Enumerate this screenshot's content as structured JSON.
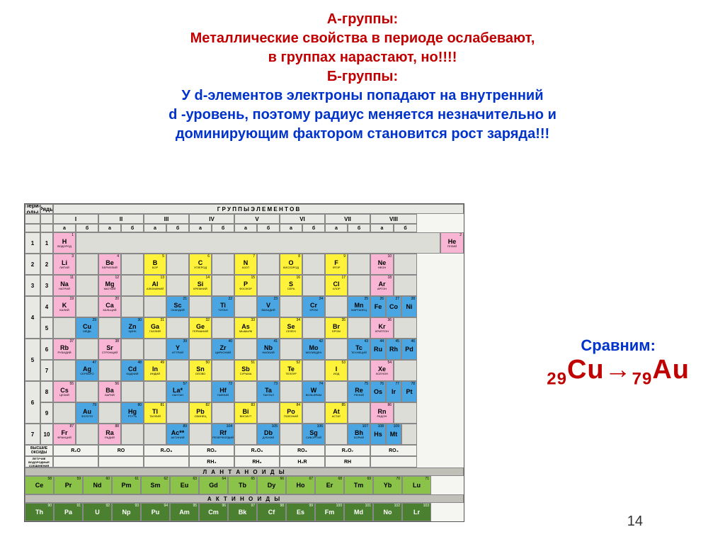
{
  "header": {
    "line1": "А-группы:",
    "line2": "Металлические свойства в периоде ослабевают,",
    "line3": "в группах нарастают, но!!!!",
    "line4": "Б-группы:",
    "line5": "У d-элементов электроны попадают на внутренний",
    "line6": "d -уровень,  поэтому радиус меняется незначительно и",
    "line7": "доминирующим фактором становится рост заряда!!!"
  },
  "compare": {
    "label": "Сравним:",
    "sub1": "29",
    "el1": "Cu",
    "arrow": "→",
    "sub2": "79",
    "el2": "Au"
  },
  "page_number": "14",
  "pt": {
    "top_label": "Г Р У П П Ы   Э Л Е М Е Н Т О В",
    "period_label": "Пери-оды",
    "row_label": "Ряды",
    "groups": [
      "I",
      "II",
      "III",
      "IV",
      "V",
      "VI",
      "VII",
      "VIII"
    ],
    "ab": [
      "а",
      "б"
    ],
    "oxides_label": "ВЫСШИЕ ОКСИДЫ",
    "oxides": [
      "R₂O",
      "RO",
      "R₂O₃",
      "RO₂",
      "R₂O₅",
      "RO₃",
      "R₂O₇",
      "RO₄"
    ],
    "hydrides_label": "ЛЕТУЧИЕ ВОДОРОДНЫЕ СОЕДИНЕНИЯ",
    "hydrides": [
      "",
      "",
      "",
      "RH₄",
      "RH₃",
      "H₂R",
      "RH",
      ""
    ],
    "lant_label": "Л А Н Т А Н О И Д Ы",
    "act_label": "А К Т И Н О И Д Ы",
    "periods": [
      {
        "p": "1",
        "r": "1"
      },
      {
        "p": "2",
        "r": "2"
      },
      {
        "p": "3",
        "r": "3"
      },
      {
        "p": "4",
        "r": [
          "4",
          "5"
        ]
      },
      {
        "p": "5",
        "r": [
          "6",
          "7"
        ]
      },
      {
        "p": "6",
        "r": [
          "8",
          "9"
        ]
      },
      {
        "p": "7",
        "r": "10"
      }
    ],
    "rows": [
      [
        {
          "s": "H",
          "n": "ВОДОРОД",
          "z": "1",
          "c": "pink",
          "pos": "a1"
        },
        {
          "pos": "empty",
          "span": 6
        },
        {
          "s": "He",
          "n": "ГЕЛИЙ",
          "z": "2",
          "c": "pink",
          "pos": "a8"
        }
      ],
      [
        {
          "s": "Li",
          "n": "ЛИТИЙ",
          "z": "3",
          "c": "pink"
        },
        {
          "s": "Be",
          "n": "БЕРИЛЛИЙ",
          "z": "4",
          "c": "pink"
        },
        {
          "s": "B",
          "n": "БОР",
          "z": "5",
          "c": "yellow"
        },
        {
          "s": "C",
          "n": "УГЛЕРОД",
          "z": "6",
          "c": "yellow"
        },
        {
          "s": "N",
          "n": "АЗОТ",
          "z": "7",
          "c": "yellow"
        },
        {
          "s": "O",
          "n": "КИСЛОРОД",
          "z": "8",
          "c": "yellow"
        },
        {
          "s": "F",
          "n": "ФТОР",
          "z": "9",
          "c": "yellow"
        },
        {
          "s": "Ne",
          "n": "НЕОН",
          "z": "10",
          "c": "pink"
        }
      ],
      [
        {
          "s": "Na",
          "n": "НАТРИЙ",
          "z": "11",
          "c": "pink"
        },
        {
          "s": "Mg",
          "n": "МАГНИЙ",
          "z": "12",
          "c": "pink"
        },
        {
          "s": "Al",
          "n": "АЛЮМИНИЙ",
          "z": "13",
          "c": "yellow"
        },
        {
          "s": "Si",
          "n": "КРЕМНИЙ",
          "z": "14",
          "c": "yellow"
        },
        {
          "s": "P",
          "n": "ФОСФОР",
          "z": "15",
          "c": "yellow"
        },
        {
          "s": "S",
          "n": "СЕРА",
          "z": "16",
          "c": "yellow"
        },
        {
          "s": "Cl",
          "n": "ХЛОР",
          "z": "17",
          "c": "yellow"
        },
        {
          "s": "Ar",
          "n": "АРГОН",
          "z": "18",
          "c": "pink"
        }
      ],
      [
        {
          "s": "K",
          "n": "КАЛИЙ",
          "z": "19",
          "c": "pink"
        },
        {
          "s": "Ca",
          "n": "КАЛЬЦИЙ",
          "z": "20",
          "c": "pink"
        },
        {
          "s": "Sc",
          "n": "СКАНДИЙ",
          "z": "21",
          "c": "blueb"
        },
        {
          "s": "Ti",
          "n": "ТИТАН",
          "z": "22",
          "c": "blueb"
        },
        {
          "s": "V",
          "n": "ВАНАДИЙ",
          "z": "23",
          "c": "blueb"
        },
        {
          "s": "Cr",
          "n": "ХРОМ",
          "z": "24",
          "c": "blueb"
        },
        {
          "s": "Mn",
          "n": "МАРГАНЕЦ",
          "z": "25",
          "c": "blueb"
        },
        {
          "s": "Fe",
          "z": "26",
          "c": "blueb",
          "sub": [
            {
              "s": "Co",
              "z": "27"
            },
            {
              "s": "Ni",
              "z": "28"
            }
          ]
        }
      ],
      [
        {
          "s": "Cu",
          "n": "МЕДЬ",
          "z": "29",
          "c": "blueb"
        },
        {
          "s": "Zn",
          "n": "ЦИНК",
          "z": "30",
          "c": "blueb"
        },
        {
          "s": "Ga",
          "n": "ГАЛЛИЙ",
          "z": "31",
          "c": "yellow"
        },
        {
          "s": "Ge",
          "n": "ГЕРМАНИЙ",
          "z": "32",
          "c": "yellow"
        },
        {
          "s": "As",
          "n": "МЫШЬЯК",
          "z": "33",
          "c": "yellow"
        },
        {
          "s": "Se",
          "n": "СЕЛЕН",
          "z": "34",
          "c": "yellow"
        },
        {
          "s": "Br",
          "n": "БРОМ",
          "z": "35",
          "c": "yellow"
        },
        {
          "s": "Kr",
          "n": "КРИПТОН",
          "z": "36",
          "c": "pink"
        }
      ],
      [
        {
          "s": "Rb",
          "n": "РУБИДИЙ",
          "z": "37",
          "c": "pink"
        },
        {
          "s": "Sr",
          "n": "СТРОНЦИЙ",
          "z": "38",
          "c": "pink"
        },
        {
          "s": "Y",
          "n": "ИТТРИЙ",
          "z": "39",
          "c": "blueb"
        },
        {
          "s": "Zr",
          "n": "ЦИРКОНИЙ",
          "z": "40",
          "c": "blueb"
        },
        {
          "s": "Nb",
          "n": "НИОБИЙ",
          "z": "41",
          "c": "blueb"
        },
        {
          "s": "Mo",
          "n": "МОЛИБДЕН",
          "z": "42",
          "c": "blueb"
        },
        {
          "s": "Tc",
          "n": "ТЕХНЕЦИЙ",
          "z": "43",
          "c": "blueb"
        },
        {
          "s": "Ru",
          "z": "44",
          "c": "blueb",
          "sub": [
            {
              "s": "Rh",
              "z": "45"
            },
            {
              "s": "Pd",
              "z": "46"
            }
          ]
        }
      ],
      [
        {
          "s": "Ag",
          "n": "СЕРЕБРО",
          "z": "47",
          "c": "blueb"
        },
        {
          "s": "Cd",
          "n": "КАДМИЙ",
          "z": "48",
          "c": "blueb"
        },
        {
          "s": "In",
          "n": "ИНДИЙ",
          "z": "49",
          "c": "yellow"
        },
        {
          "s": "Sn",
          "n": "ОЛОВО",
          "z": "50",
          "c": "yellow"
        },
        {
          "s": "Sb",
          "n": "СУРЬМА",
          "z": "51",
          "c": "yellow"
        },
        {
          "s": "Te",
          "n": "ТЕЛЛУР",
          "z": "52",
          "c": "yellow"
        },
        {
          "s": "I",
          "n": "ИОД",
          "z": "53",
          "c": "yellow"
        },
        {
          "s": "Xe",
          "n": "КСЕНОН",
          "z": "54",
          "c": "pink"
        }
      ],
      [
        {
          "s": "Cs",
          "n": "ЦЕЗИЙ",
          "z": "55",
          "c": "pink"
        },
        {
          "s": "Ba",
          "n": "БАРИЙ",
          "z": "56",
          "c": "pink"
        },
        {
          "s": "La*",
          "n": "ЛАНТАН",
          "z": "57",
          "c": "blueb"
        },
        {
          "s": "Hf",
          "n": "ГАФНИЙ",
          "z": "72",
          "c": "blueb"
        },
        {
          "s": "Ta",
          "n": "ТАНТАЛ",
          "z": "73",
          "c": "blueb"
        },
        {
          "s": "W",
          "n": "ВОЛЬФРАМ",
          "z": "74",
          "c": "blueb"
        },
        {
          "s": "Re",
          "n": "РЕНИЙ",
          "z": "75",
          "c": "blueb"
        },
        {
          "s": "Os",
          "z": "76",
          "c": "blueb",
          "sub": [
            {
              "s": "Ir",
              "z": "77"
            },
            {
              "s": "Pt",
              "z": "78"
            }
          ]
        }
      ],
      [
        {
          "s": "Au",
          "n": "ЗОЛОТО",
          "z": "79",
          "c": "blueb"
        },
        {
          "s": "Hg",
          "n": "РТУТЬ",
          "z": "80",
          "c": "blueb"
        },
        {
          "s": "Tl",
          "n": "ТАЛЛИЙ",
          "z": "81",
          "c": "yellow"
        },
        {
          "s": "Pb",
          "n": "СВИНЕЦ",
          "z": "82",
          "c": "yellow"
        },
        {
          "s": "Bi",
          "n": "ВИСМУТ",
          "z": "83",
          "c": "yellow"
        },
        {
          "s": "Po",
          "n": "ПОЛОНИЙ",
          "z": "84",
          "c": "yellow"
        },
        {
          "s": "At",
          "n": "АСТАТ",
          "z": "85",
          "c": "yellow"
        },
        {
          "s": "Rn",
          "n": "РАДОН",
          "z": "86",
          "c": "pink"
        }
      ],
      [
        {
          "s": "Fr",
          "n": "ФРАНЦИЙ",
          "z": "87",
          "c": "pink"
        },
        {
          "s": "Ra",
          "n": "РАДИЙ",
          "z": "88",
          "c": "pink"
        },
        {
          "s": "Ac**",
          "n": "АКТИНИЙ",
          "z": "89",
          "c": "blueb"
        },
        {
          "s": "Rf",
          "n": "РЕЗЕРФОРДИЙ",
          "z": "104",
          "c": "blueb"
        },
        {
          "s": "Db",
          "n": "ДУБНИЙ",
          "z": "105",
          "c": "blueb"
        },
        {
          "s": "Sg",
          "n": "СИБОРГИЙ",
          "z": "106",
          "c": "blueb"
        },
        {
          "s": "Bh",
          "n": "БОРИЙ",
          "z": "107",
          "c": "blueb"
        },
        {
          "s": "Hs",
          "z": "108",
          "c": "blueb",
          "sub": [
            {
              "s": "Mt",
              "z": "109"
            },
            {
              "s": "",
              "z": ""
            }
          ]
        }
      ]
    ],
    "lanthanides": [
      {
        "s": "Ce",
        "z": "58"
      },
      {
        "s": "Pr",
        "z": "59"
      },
      {
        "s": "Nd",
        "z": "60"
      },
      {
        "s": "Pm",
        "z": "61"
      },
      {
        "s": "Sm",
        "z": "62"
      },
      {
        "s": "Eu",
        "z": "63"
      },
      {
        "s": "Gd",
        "z": "64"
      },
      {
        "s": "Tb",
        "z": "65"
      },
      {
        "s": "Dy",
        "z": "66"
      },
      {
        "s": "Ho",
        "z": "67"
      },
      {
        "s": "Er",
        "z": "68"
      },
      {
        "s": "Tm",
        "z": "69"
      },
      {
        "s": "Yb",
        "z": "70"
      },
      {
        "s": "Lu",
        "z": "71"
      }
    ],
    "actinides": [
      {
        "s": "Th",
        "z": "90"
      },
      {
        "s": "Pa",
        "z": "91"
      },
      {
        "s": "U",
        "z": "92"
      },
      {
        "s": "Np",
        "z": "93"
      },
      {
        "s": "Pu",
        "z": "94"
      },
      {
        "s": "Am",
        "z": "95"
      },
      {
        "s": "Cm",
        "z": "96"
      },
      {
        "s": "Bk",
        "z": "97"
      },
      {
        "s": "Cf",
        "z": "98"
      },
      {
        "s": "Es",
        "z": "99"
      },
      {
        "s": "Fm",
        "z": "100"
      },
      {
        "s": "Md",
        "z": "101"
      },
      {
        "s": "No",
        "z": "102"
      },
      {
        "s": "Lr",
        "z": "103"
      }
    ]
  },
  "colors": {
    "red": "#c00000",
    "blue": "#0033cc",
    "pink": "#f8b6d4",
    "yellow": "#fff23b",
    "blueb": "#4aa6e2",
    "lant": "#8bc34a",
    "actn": "#4a8030"
  }
}
